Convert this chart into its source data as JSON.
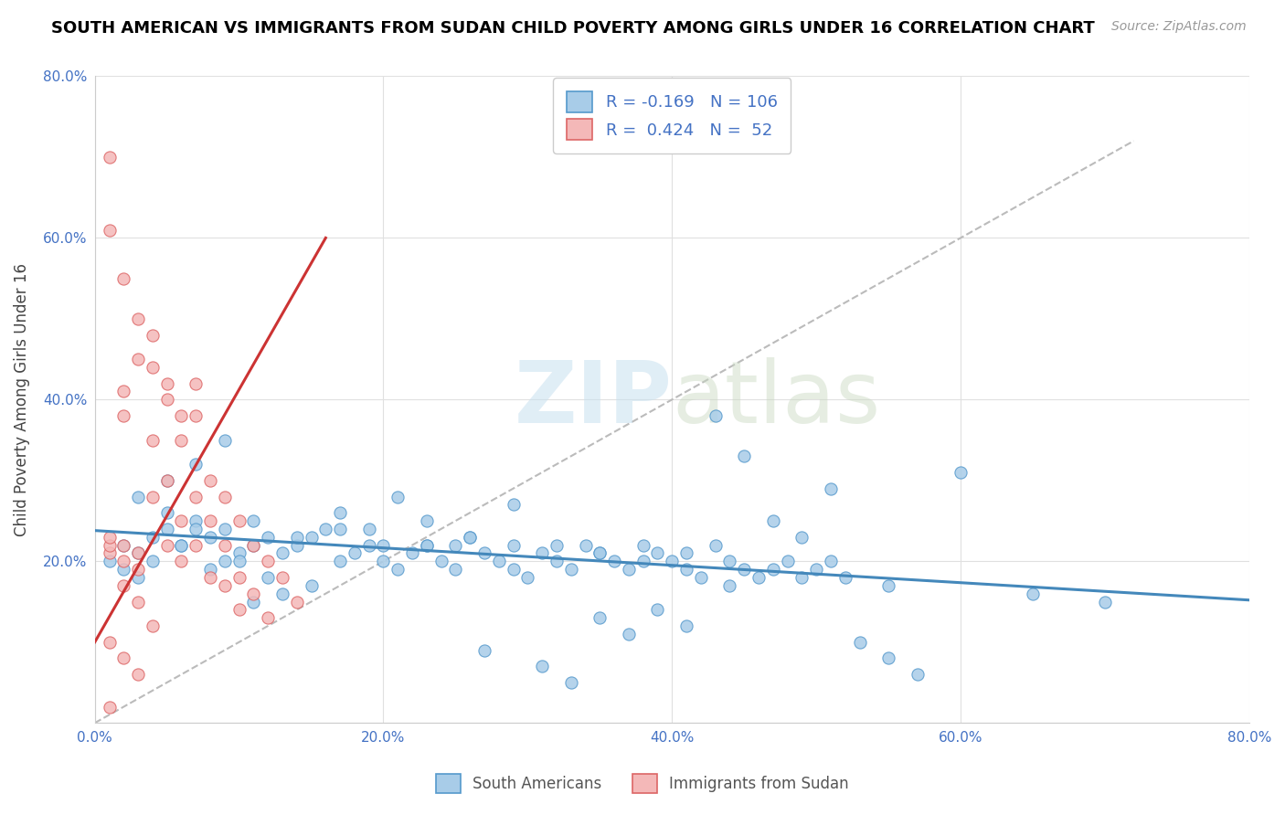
{
  "title": "SOUTH AMERICAN VS IMMIGRANTS FROM SUDAN CHILD POVERTY AMONG GIRLS UNDER 16 CORRELATION CHART",
  "source": "Source: ZipAtlas.com",
  "ylabel": "Child Poverty Among Girls Under 16",
  "xlim": [
    0.0,
    0.8
  ],
  "ylim": [
    0.0,
    0.8
  ],
  "xtick_labels": [
    "0.0%",
    "20.0%",
    "40.0%",
    "60.0%",
    "80.0%"
  ],
  "xtick_values": [
    0.0,
    0.2,
    0.4,
    0.6,
    0.8
  ],
  "ytick_labels": [
    "",
    "20.0%",
    "40.0%",
    "60.0%",
    "80.0%"
  ],
  "ytick_values": [
    0.0,
    0.2,
    0.4,
    0.6,
    0.8
  ],
  "blue_R": "-0.169",
  "blue_N": "106",
  "pink_R": "0.424",
  "pink_N": "52",
  "blue_color": "#a8cce8",
  "pink_color": "#f4b8b8",
  "blue_edge_color": "#5599cc",
  "pink_edge_color": "#dd6666",
  "blue_line_color": "#4488bb",
  "pink_line_color": "#cc3333",
  "legend_label_blue": "South Americans",
  "legend_label_pink": "Immigrants from Sudan",
  "watermark_zip": "ZIP",
  "watermark_atlas": "atlas",
  "blue_line_x": [
    0.0,
    0.8
  ],
  "blue_line_y": [
    0.238,
    0.152
  ],
  "pink_line_x": [
    0.0,
    0.16
  ],
  "pink_line_y": [
    0.1,
    0.6
  ],
  "dash_line_x": [
    0.0,
    0.72
  ],
  "dash_line_y": [
    0.0,
    0.72
  ],
  "blue_scatter_x": [
    0.02,
    0.01,
    0.03,
    0.02,
    0.04,
    0.05,
    0.06,
    0.03,
    0.07,
    0.08,
    0.04,
    0.05,
    0.06,
    0.07,
    0.09,
    0.1,
    0.11,
    0.12,
    0.08,
    0.09,
    0.1,
    0.13,
    0.14,
    0.15,
    0.12,
    0.16,
    0.17,
    0.18,
    0.11,
    0.19,
    0.2,
    0.21,
    0.14,
    0.22,
    0.23,
    0.24,
    0.17,
    0.25,
    0.26,
    0.27,
    0.2,
    0.28,
    0.29,
    0.3,
    0.23,
    0.31,
    0.32,
    0.33,
    0.26,
    0.34,
    0.35,
    0.36,
    0.29,
    0.37,
    0.38,
    0.39,
    0.32,
    0.4,
    0.41,
    0.42,
    0.35,
    0.43,
    0.44,
    0.45,
    0.38,
    0.46,
    0.47,
    0.48,
    0.41,
    0.49,
    0.5,
    0.51,
    0.44,
    0.52,
    0.55,
    0.6,
    0.65,
    0.7,
    0.03,
    0.05,
    0.07,
    0.09,
    0.11,
    0.13,
    0.15,
    0.17,
    0.19,
    0.21,
    0.23,
    0.25,
    0.27,
    0.29,
    0.31,
    0.33,
    0.35,
    0.37,
    0.39,
    0.41,
    0.43,
    0.45,
    0.47,
    0.49,
    0.51,
    0.53,
    0.55,
    0.57
  ],
  "blue_scatter_y": [
    0.22,
    0.2,
    0.21,
    0.19,
    0.23,
    0.24,
    0.22,
    0.18,
    0.25,
    0.23,
    0.2,
    0.26,
    0.22,
    0.24,
    0.2,
    0.21,
    0.22,
    0.23,
    0.19,
    0.24,
    0.2,
    0.21,
    0.22,
    0.23,
    0.18,
    0.24,
    0.2,
    0.21,
    0.25,
    0.22,
    0.2,
    0.19,
    0.23,
    0.21,
    0.22,
    0.2,
    0.24,
    0.19,
    0.23,
    0.21,
    0.22,
    0.2,
    0.19,
    0.18,
    0.22,
    0.21,
    0.2,
    0.19,
    0.23,
    0.22,
    0.21,
    0.2,
    0.22,
    0.19,
    0.2,
    0.21,
    0.22,
    0.2,
    0.19,
    0.18,
    0.21,
    0.22,
    0.2,
    0.19,
    0.22,
    0.18,
    0.19,
    0.2,
    0.21,
    0.18,
    0.19,
    0.2,
    0.17,
    0.18,
    0.17,
    0.31,
    0.16,
    0.15,
    0.28,
    0.3,
    0.32,
    0.35,
    0.15,
    0.16,
    0.17,
    0.26,
    0.24,
    0.28,
    0.25,
    0.22,
    0.09,
    0.27,
    0.07,
    0.05,
    0.13,
    0.11,
    0.14,
    0.12,
    0.38,
    0.33,
    0.25,
    0.23,
    0.29,
    0.1,
    0.08,
    0.06
  ],
  "pink_scatter_x": [
    0.01,
    0.01,
    0.01,
    0.01,
    0.02,
    0.02,
    0.02,
    0.02,
    0.03,
    0.03,
    0.03,
    0.04,
    0.04,
    0.04,
    0.05,
    0.05,
    0.05,
    0.06,
    0.06,
    0.06,
    0.07,
    0.07,
    0.07,
    0.07,
    0.08,
    0.08,
    0.08,
    0.09,
    0.09,
    0.09,
    0.1,
    0.1,
    0.1,
    0.11,
    0.11,
    0.12,
    0.12,
    0.13,
    0.14,
    0.01,
    0.02,
    0.03,
    0.04,
    0.05,
    0.06,
    0.02,
    0.03,
    0.04,
    0.01,
    0.02,
    0.03,
    0.01
  ],
  "pink_scatter_y": [
    0.21,
    0.22,
    0.23,
    0.7,
    0.2,
    0.22,
    0.38,
    0.41,
    0.19,
    0.21,
    0.45,
    0.35,
    0.48,
    0.28,
    0.3,
    0.4,
    0.22,
    0.25,
    0.35,
    0.2,
    0.38,
    0.42,
    0.28,
    0.22,
    0.3,
    0.25,
    0.18,
    0.28,
    0.22,
    0.17,
    0.25,
    0.18,
    0.14,
    0.22,
    0.16,
    0.2,
    0.13,
    0.18,
    0.15,
    0.61,
    0.55,
    0.5,
    0.44,
    0.42,
    0.38,
    0.17,
    0.15,
    0.12,
    0.1,
    0.08,
    0.06,
    0.02
  ]
}
